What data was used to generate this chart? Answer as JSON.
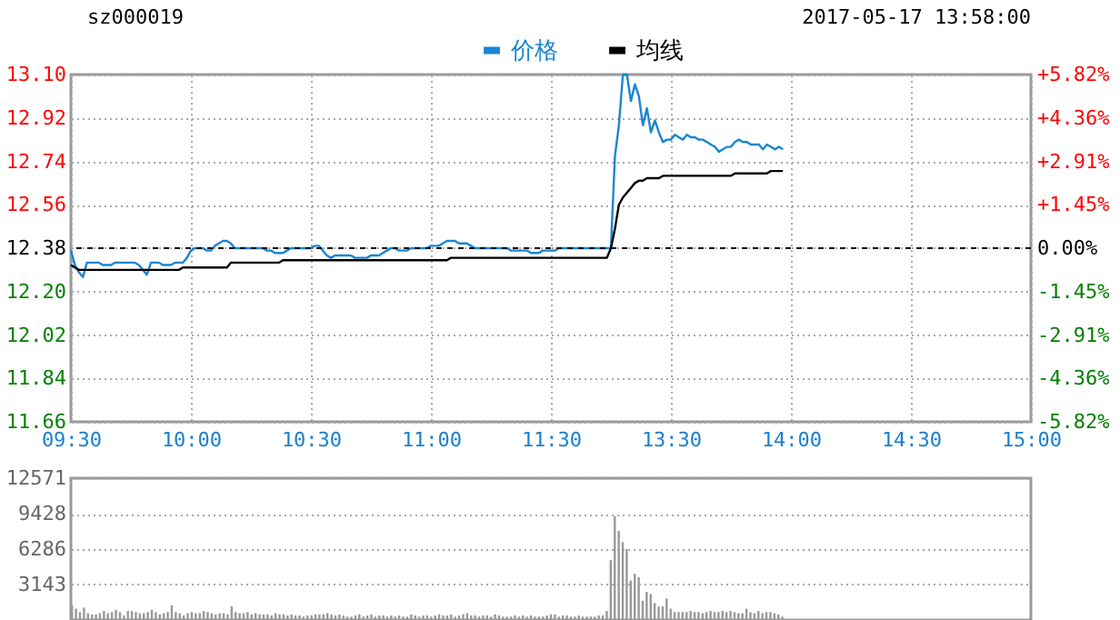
{
  "chart_data": [
    {
      "type": "line",
      "annotations": [
        "sz000019",
        "2017-05-17 13:58:00"
      ],
      "legend": "top",
      "grid": true,
      "categories": [
        "09:30",
        null,
        null,
        null,
        null,
        null,
        null,
        null,
        null,
        null,
        null,
        null,
        null,
        null,
        null,
        null,
        null,
        null,
        null,
        null,
        null,
        null,
        null,
        null,
        null,
        null,
        null,
        null,
        null,
        null,
        "10:00",
        null,
        null,
        null,
        null,
        null,
        null,
        null,
        null,
        null,
        null,
        null,
        null,
        null,
        null,
        null,
        null,
        null,
        null,
        null,
        null,
        null,
        null,
        null,
        null,
        null,
        null,
        null,
        null,
        null,
        "10:30",
        null,
        null,
        null,
        null,
        null,
        null,
        null,
        null,
        null,
        null,
        null,
        null,
        null,
        null,
        null,
        null,
        null,
        null,
        null,
        null,
        null,
        null,
        null,
        null,
        null,
        null,
        null,
        null,
        null,
        "11:00",
        null,
        null,
        null,
        null,
        null,
        null,
        null,
        null,
        null,
        null,
        null,
        null,
        null,
        null,
        null,
        null,
        null,
        null,
        null,
        null,
        null,
        null,
        null,
        null,
        null,
        null,
        null,
        null,
        null,
        "11:30",
        null,
        null,
        null,
        null,
        null,
        null,
        null,
        null,
        null,
        null,
        null,
        null,
        null,
        null,
        null,
        null,
        null,
        null,
        null,
        null,
        null,
        null,
        null,
        null,
        null,
        null,
        null,
        null,
        null,
        "13:30",
        null,
        null,
        null,
        null,
        null,
        null,
        null,
        null,
        null,
        null,
        null,
        null,
        null,
        null,
        null,
        null,
        null,
        null,
        null,
        null,
        null,
        null,
        null,
        null,
        null,
        null,
        null,
        null,
        null,
        "14:00",
        null,
        null,
        null,
        null,
        null,
        null,
        null,
        null,
        null,
        null,
        null,
        null,
        null,
        null,
        null,
        null,
        null,
        null,
        null,
        null,
        null,
        null,
        null,
        null,
        null,
        null,
        null,
        null,
        null,
        "14:30",
        null,
        null,
        null,
        null,
        null,
        null,
        null,
        null,
        null,
        null,
        null,
        null,
        null,
        null,
        null,
        null,
        null,
        null,
        null,
        null,
        null,
        null,
        null,
        null,
        null,
        null,
        null,
        null,
        null,
        "15:00"
      ],
      "ylim": [
        11.66,
        13.1
      ],
      "yticks": [
        {
          "value": 11.66,
          "label": "11.66"
        },
        {
          "value": 11.84,
          "label": "11.84"
        },
        {
          "value": 12.02,
          "label": "12.02"
        },
        {
          "value": 12.2,
          "label": "12.20"
        },
        {
          "value": 12.38,
          "label": "12.38"
        },
        {
          "value": 12.56,
          "label": "12.56"
        },
        {
          "value": 12.74,
          "label": "12.74"
        },
        {
          "value": 12.92,
          "label": "12.92"
        },
        {
          "value": 13.1,
          "label": "13.10"
        }
      ],
      "y2lim": [
        -5.82,
        5.82
      ],
      "y2ticks": [
        {
          "value": -5.82,
          "label": "-5.82%"
        },
        {
          "value": -4.36,
          "label": "-4.36%"
        },
        {
          "value": -2.91,
          "label": "-2.91%"
        },
        {
          "value": -1.45,
          "label": "-1.45%"
        },
        {
          "value": 0,
          "label": "0.00%"
        },
        {
          "value": 1.45,
          "label": "+1.45%"
        },
        {
          "value": 2.91,
          "label": "+2.91%"
        },
        {
          "value": 4.36,
          "label": "+4.36%"
        },
        {
          "value": 5.82,
          "label": "+5.82%"
        }
      ],
      "ref_lines": [
        {
          "axis": "y",
          "value": 12.38,
          "line_style": "dashed",
          "color": "#000000"
        }
      ],
      "series": [
        {
          "name": "价格",
          "color": "#1a86d0",
          "values": [
            12.37,
            12.31,
            12.28,
            12.26,
            12.32,
            12.32,
            12.32,
            12.32,
            12.31,
            12.31,
            12.31,
            12.32,
            12.32,
            12.32,
            12.32,
            12.32,
            12.32,
            12.31,
            12.29,
            12.27,
            12.32,
            12.32,
            12.32,
            12.31,
            12.31,
            12.31,
            12.32,
            12.32,
            12.32,
            12.34,
            12.37,
            12.38,
            12.38,
            12.38,
            12.37,
            12.37,
            12.39,
            12.4,
            12.41,
            12.41,
            12.4,
            12.38,
            12.38,
            12.38,
            12.38,
            12.38,
            12.38,
            12.38,
            12.38,
            12.37,
            12.37,
            12.36,
            12.36,
            12.36,
            12.37,
            12.38,
            12.38,
            12.38,
            12.38,
            12.38,
            12.38,
            12.39,
            12.39,
            12.37,
            12.35,
            12.34,
            12.35,
            12.35,
            12.35,
            12.35,
            12.35,
            12.34,
            12.34,
            12.34,
            12.34,
            12.35,
            12.35,
            12.35,
            12.36,
            12.37,
            12.38,
            12.38,
            12.37,
            12.37,
            12.37,
            12.38,
            12.38,
            12.38,
            12.38,
            12.38,
            12.39,
            12.39,
            12.39,
            12.4,
            12.41,
            12.41,
            12.41,
            12.4,
            12.4,
            12.4,
            12.39,
            12.38,
            12.38,
            12.38,
            12.38,
            12.38,
            12.38,
            12.38,
            12.38,
            12.38,
            12.37,
            12.37,
            12.37,
            12.37,
            12.37,
            12.36,
            12.36,
            12.36,
            12.37,
            12.37,
            12.37,
            12.37,
            12.38,
            12.38,
            12.38,
            12.38,
            12.38,
            12.38,
            12.38,
            12.38,
            12.38,
            12.38,
            12.38,
            12.38,
            12.38,
            12.38,
            12.76,
            12.89,
            13.1,
            13.1,
            12.99,
            13.06,
            13.01,
            12.89,
            12.96,
            12.86,
            12.91,
            12.86,
            12.82,
            12.83,
            12.83,
            12.85,
            12.84,
            12.83,
            12.85,
            12.84,
            12.84,
            12.83,
            12.83,
            12.82,
            12.81,
            12.8,
            12.78,
            12.79,
            12.8,
            12.8,
            12.82,
            12.83,
            12.82,
            12.82,
            12.81,
            12.81,
            12.81,
            12.79,
            12.81,
            12.8,
            12.79,
            12.8,
            12.79,
            null,
            null,
            null,
            null,
            null,
            null,
            null,
            null,
            null,
            null,
            null,
            null,
            null,
            null,
            null,
            null,
            null,
            null,
            null,
            null,
            null,
            null,
            null,
            null,
            null,
            null,
            null,
            null,
            null,
            null,
            null,
            null,
            null,
            null,
            null,
            null,
            null,
            null,
            null,
            null,
            null,
            null,
            null,
            null,
            null,
            null,
            null,
            null,
            null,
            null,
            null,
            null,
            null,
            null,
            null,
            null,
            null,
            null,
            null,
            null,
            null,
            null
          ]
        },
        {
          "name": "均线",
          "color": "#000000",
          "values": [
            12.31,
            12.3,
            12.29,
            12.29,
            12.29,
            12.29,
            12.29,
            12.29,
            12.29,
            12.29,
            12.29,
            12.29,
            12.29,
            12.29,
            12.29,
            12.29,
            12.29,
            12.29,
            12.29,
            12.29,
            12.29,
            12.29,
            12.29,
            12.29,
            12.29,
            12.29,
            12.29,
            12.29,
            12.3,
            12.3,
            12.3,
            12.3,
            12.3,
            12.3,
            12.3,
            12.3,
            12.3,
            12.3,
            12.3,
            12.3,
            12.32,
            12.32,
            12.32,
            12.32,
            12.32,
            12.32,
            12.32,
            12.32,
            12.32,
            12.32,
            12.32,
            12.32,
            12.32,
            12.33,
            12.33,
            12.33,
            12.33,
            12.33,
            12.33,
            12.33,
            12.33,
            12.33,
            12.33,
            12.33,
            12.33,
            12.33,
            12.33,
            12.33,
            12.33,
            12.33,
            12.33,
            12.33,
            12.33,
            12.33,
            12.33,
            12.33,
            12.33,
            12.33,
            12.33,
            12.33,
            12.33,
            12.33,
            12.33,
            12.33,
            12.33,
            12.33,
            12.33,
            12.33,
            12.33,
            12.33,
            12.33,
            12.33,
            12.33,
            12.33,
            12.33,
            12.34,
            12.34,
            12.34,
            12.34,
            12.34,
            12.34,
            12.34,
            12.34,
            12.34,
            12.34,
            12.34,
            12.34,
            12.34,
            12.34,
            12.34,
            12.34,
            12.34,
            12.34,
            12.34,
            12.34,
            12.34,
            12.34,
            12.34,
            12.34,
            12.34,
            12.34,
            12.34,
            12.34,
            12.34,
            12.34,
            12.34,
            12.34,
            12.34,
            12.34,
            12.34,
            12.34,
            12.34,
            12.34,
            12.34,
            12.34,
            12.38,
            12.46,
            12.56,
            12.59,
            12.61,
            12.63,
            12.65,
            12.66,
            12.66,
            12.67,
            12.67,
            12.67,
            12.67,
            12.68,
            12.68,
            12.68,
            12.68,
            12.68,
            12.68,
            12.68,
            12.68,
            12.68,
            12.68,
            12.68,
            12.68,
            12.68,
            12.68,
            12.68,
            12.68,
            12.68,
            12.68,
            12.69,
            12.69,
            12.69,
            12.69,
            12.69,
            12.69,
            12.69,
            12.69,
            12.69,
            12.7,
            12.7,
            12.7,
            12.7,
            null,
            null,
            null,
            null,
            null,
            null,
            null,
            null,
            null,
            null,
            null,
            null,
            null,
            null,
            null,
            null,
            null,
            null,
            null,
            null,
            null,
            null,
            null,
            null,
            null,
            null,
            null,
            null,
            null,
            null,
            null,
            null,
            null,
            null,
            null,
            null,
            null,
            null,
            null,
            null,
            null,
            null,
            null,
            null,
            null,
            null,
            null,
            null,
            null,
            null,
            null,
            null,
            null,
            null,
            null,
            null,
            null,
            null,
            null,
            null,
            null,
            null
          ]
        }
      ]
    },
    {
      "type": "bar",
      "grid": "y",
      "color": "#999999",
      "ylim": [
        0,
        12571
      ],
      "yticks": [
        {
          "value": 0,
          "label": null
        },
        3143,
        6286,
        9428,
        12571
      ],
      "categories": [
        null,
        null,
        null,
        null,
        null,
        null,
        null,
        null,
        null,
        null,
        null,
        null,
        null,
        null,
        null,
        null,
        null,
        null,
        null,
        null,
        null,
        null,
        null,
        null,
        null,
        null,
        null,
        null,
        null,
        null,
        null,
        null,
        null,
        null,
        null,
        null,
        null,
        null,
        null,
        null,
        null,
        null,
        null,
        null,
        null,
        null,
        null,
        null,
        null,
        null,
        null,
        null,
        null,
        null,
        null,
        null,
        null,
        null,
        null,
        null,
        null,
        null,
        null,
        null,
        null,
        null,
        null,
        null,
        null,
        null,
        null,
        null,
        null,
        null,
        null,
        null,
        null,
        null,
        null,
        null,
        null,
        null,
        null,
        null,
        null,
        null,
        null,
        null,
        null,
        null,
        null,
        null,
        null,
        null,
        null,
        null,
        null,
        null,
        null,
        null,
        null,
        null,
        null,
        null,
        null,
        null,
        null,
        null,
        null,
        null,
        null,
        null,
        null,
        null,
        null,
        null,
        null,
        null,
        null,
        null,
        null,
        null,
        null,
        null,
        null,
        null,
        null,
        null,
        null,
        null,
        null,
        null,
        null,
        null,
        null,
        null,
        null,
        null,
        null,
        null,
        null,
        null,
        null,
        null,
        null,
        null,
        null,
        null,
        null,
        null,
        null,
        null,
        null,
        null,
        null,
        null,
        null,
        null,
        null,
        null,
        null,
        null,
        null,
        null,
        null,
        null,
        null,
        null,
        null,
        null,
        null,
        null,
        null,
        null,
        null,
        null,
        null,
        null,
        null,
        null,
        null,
        null,
        null,
        null,
        null,
        null,
        null,
        null,
        null,
        null,
        null,
        null,
        null,
        null,
        null,
        null,
        null,
        null,
        null,
        null,
        null,
        null,
        null,
        null,
        null,
        null,
        null,
        null,
        null,
        null,
        null,
        null,
        null,
        null,
        null,
        null,
        null,
        null,
        null,
        null,
        null,
        null,
        null,
        null,
        null,
        null,
        null,
        null,
        null,
        null,
        null,
        null,
        null,
        null,
        null,
        null,
        null,
        null,
        null,
        null,
        null
      ],
      "values": [
        1300,
        1000,
        700,
        1100,
        600,
        500,
        500,
        600,
        800,
        600,
        700,
        900,
        700,
        400,
        800,
        800,
        700,
        600,
        600,
        700,
        900,
        700,
        500,
        600,
        700,
        1300,
        700,
        600,
        400,
        600,
        700,
        600,
        600,
        800,
        700,
        600,
        500,
        600,
        600,
        500,
        1200,
        700,
        600,
        600,
        700,
        500,
        600,
        500,
        500,
        500,
        400,
        600,
        500,
        500,
        400,
        500,
        400,
        400,
        300,
        400,
        400,
        500,
        500,
        500,
        600,
        500,
        400,
        500,
        400,
        300,
        300,
        400,
        500,
        300,
        400,
        500,
        300,
        400,
        400,
        300,
        400,
        300,
        400,
        300,
        300,
        500,
        400,
        300,
        400,
        400,
        300,
        400,
        500,
        400,
        400,
        500,
        300,
        400,
        500,
        600,
        400,
        400,
        300,
        400,
        400,
        300,
        500,
        400,
        300,
        300,
        300,
        400,
        300,
        400,
        300,
        400,
        300,
        300,
        300,
        400,
        500,
        500,
        300,
        400,
        400,
        300,
        300,
        400,
        300,
        300,
        300,
        300,
        400,
        400,
        800,
        5300,
        9200,
        7900,
        6900,
        6300,
        3500,
        4100,
        3800,
        1700,
        2500,
        2300,
        1500,
        1200,
        1200,
        1900,
        1000,
        700,
        700,
        700,
        700,
        800,
        700,
        700,
        600,
        700,
        800,
        700,
        700,
        800,
        700,
        800,
        700,
        600,
        600,
        1000,
        700,
        600,
        800,
        600,
        700,
        700,
        600,
        500,
        300,
        null,
        null,
        null,
        null,
        null,
        null,
        null,
        null,
        null,
        null,
        null,
        null,
        null,
        null,
        null,
        null,
        null,
        null,
        null,
        null,
        null,
        null,
        null,
        null,
        null,
        null,
        null,
        null,
        null,
        null,
        null,
        null,
        null,
        null,
        null,
        null,
        null,
        null,
        null,
        null,
        null,
        null,
        null,
        null,
        null,
        null,
        null,
        null,
        null,
        null,
        null,
        null,
        null,
        null,
        null,
        null,
        null,
        null,
        null,
        null,
        null,
        null
      ]
    }
  ]
}
